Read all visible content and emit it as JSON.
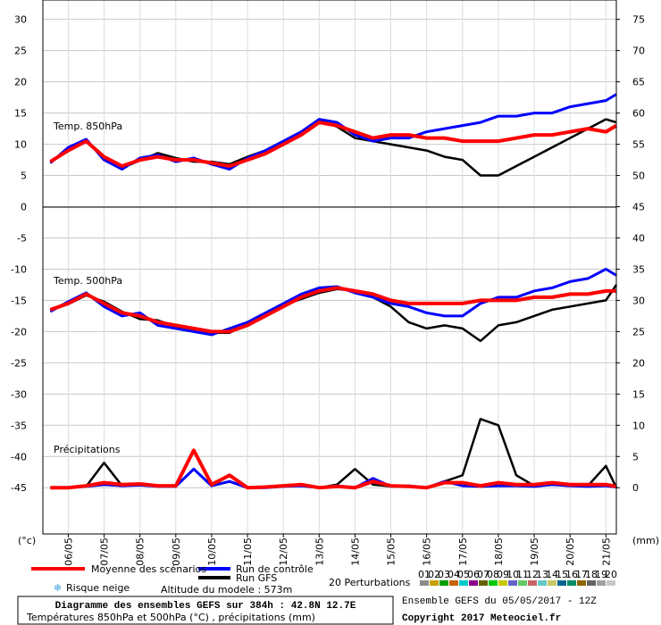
{
  "chart_data": {
    "type": "line",
    "title": "Diagramme des ensembles GEFS sur 384h : 42.8N 12.7E",
    "subtitle": "Températures 850hPa et 500hPa (°C) , précipitations (mm)",
    "run_info": "Ensemble GEFS du 05/05/2017 - 12Z",
    "copyright": "Copyright 2017 Meteociel.fr",
    "altitude": "Altitude du modele : 573m",
    "snow_label": "Risque neige",
    "y_unit": "(°c)",
    "y2_unit": "(mm)",
    "grid": true,
    "x": [
      0,
      12,
      24,
      36,
      48,
      60,
      72,
      84,
      96,
      108,
      120,
      132,
      144,
      156,
      168,
      180,
      192,
      204,
      216,
      228,
      240,
      252,
      264,
      276,
      288,
      300,
      312,
      324,
      336,
      348,
      360,
      372,
      379
    ],
    "xlim": [
      -5,
      379
    ],
    "xticks": [
      {
        "value": 12,
        "label": "06/05"
      },
      {
        "value": 36,
        "label": "07/05"
      },
      {
        "value": 60,
        "label": "08/05"
      },
      {
        "value": 84,
        "label": "09/05"
      },
      {
        "value": 108,
        "label": "10/05"
      },
      {
        "value": 132,
        "label": "11/05"
      },
      {
        "value": 156,
        "label": "12/05"
      },
      {
        "value": 180,
        "label": "13/05"
      },
      {
        "value": 204,
        "label": "14/05"
      },
      {
        "value": 228,
        "label": "15/05"
      },
      {
        "value": 252,
        "label": "16/05"
      },
      {
        "value": 276,
        "label": "17/05"
      },
      {
        "value": 300,
        "label": "18/05"
      },
      {
        "value": 324,
        "label": "19/05"
      },
      {
        "value": 348,
        "label": "20/05"
      },
      {
        "value": 372,
        "label": "21/05"
      }
    ],
    "ylim": [
      -52.4,
      33.1
    ],
    "yticks": [
      -45,
      -40,
      -35,
      -30,
      -25,
      -20,
      -15,
      -10,
      -5,
      0,
      5,
      10,
      15,
      20,
      25,
      30
    ],
    "y2lim": [
      -7.4,
      78.1
    ],
    "y2ticks": [
      0,
      5,
      10,
      15,
      20,
      25,
      30,
      35,
      40,
      45,
      50,
      55,
      60,
      65,
      70,
      75
    ],
    "legend": {
      "mean": {
        "name": "Moyenne des scénarios",
        "color": "#ff0000"
      },
      "control": {
        "name": "Run de contrôle",
        "color": "#0000ff"
      },
      "gfs": {
        "name": "Run GFS",
        "color": "#000000"
      }
    },
    "perturbations": {
      "label": "20 Perturbations",
      "members": [
        {
          "name": "01",
          "color": "#8c8c8c"
        },
        {
          "name": "02",
          "color": "#c8a000"
        },
        {
          "name": "03",
          "color": "#00a000"
        },
        {
          "name": "04",
          "color": "#c86400"
        },
        {
          "name": "05",
          "color": "#00c8c8"
        },
        {
          "name": "06",
          "color": "#8c008c"
        },
        {
          "name": "07",
          "color": "#646400"
        },
        {
          "name": "08",
          "color": "#00c800"
        },
        {
          "name": "09",
          "color": "#c8c800"
        },
        {
          "name": "10",
          "color": "#6464c8"
        },
        {
          "name": "11",
          "color": "#64c864"
        },
        {
          "name": "12",
          "color": "#c86464"
        },
        {
          "name": "13",
          "color": "#64c8c8"
        },
        {
          "name": "14",
          "color": "#c8c864"
        },
        {
          "name": "15",
          "color": "#00648c"
        },
        {
          "name": "16",
          "color": "#008c64"
        },
        {
          "name": "17",
          "color": "#8c6400"
        },
        {
          "name": "18",
          "color": "#646464"
        },
        {
          "name": "19",
          "color": "#a0a0a0"
        },
        {
          "name": "20",
          "color": "#c8c8c8"
        }
      ]
    },
    "panels": [
      {
        "label": "Temp. 850hPa",
        "axis": "y",
        "mean": [
          7.2,
          9,
          10.5,
          8,
          6.5,
          7.5,
          8,
          7.5,
          7.5,
          7,
          6.5,
          7.5,
          8.5,
          10,
          11.5,
          13.5,
          13,
          12,
          11,
          11.5,
          11.5,
          11,
          11,
          10.5,
          10.5,
          10.5,
          11,
          11.5,
          11.5,
          12,
          12.5,
          12,
          13
        ],
        "control": [
          7,
          9.5,
          10.8,
          7.5,
          6,
          7.8,
          8.3,
          7.2,
          7.8,
          6.8,
          6,
          7.8,
          9,
          10.5,
          12,
          14,
          13.5,
          11.5,
          10.5,
          11,
          11,
          12,
          12.5,
          13,
          13.5,
          14.5,
          14.5,
          15,
          15,
          16,
          16.5,
          17,
          18
        ],
        "gfs": [
          7,
          9.2,
          10.6,
          7.8,
          6.2,
          7.4,
          8.6,
          7.8,
          7.2,
          7.2,
          6.8,
          8,
          9,
          10.2,
          11.8,
          13.8,
          12.8,
          11,
          10.5,
          10,
          9.5,
          9,
          8,
          7.5,
          5,
          5,
          6.5,
          8,
          9.5,
          11,
          12.5,
          14,
          13.5
        ]
      },
      {
        "label": "Temp. 500hPa",
        "axis": "y",
        "mean": [
          -16.5,
          -15.5,
          -14,
          -15.5,
          -17,
          -17.5,
          -18.5,
          -19,
          -19.5,
          -20,
          -20,
          -19,
          -17.5,
          -16,
          -14.5,
          -13.5,
          -13,
          -13.5,
          -14,
          -15,
          -15.5,
          -15.5,
          -15.5,
          -15.5,
          -15,
          -15,
          -15,
          -14.5,
          -14.5,
          -14,
          -14,
          -13.5,
          -13.5
        ],
        "control": [
          -16.8,
          -15.2,
          -13.8,
          -16,
          -17.5,
          -17,
          -19,
          -19.5,
          -20,
          -20.5,
          -19.5,
          -18.5,
          -17,
          -15.5,
          -14,
          -13,
          -12.8,
          -13.8,
          -14.5,
          -15.5,
          -16,
          -17,
          -17.5,
          -17.5,
          -15.5,
          -14.5,
          -14.5,
          -13.5,
          -13,
          -12,
          -11.5,
          -10,
          -11
        ],
        "gfs": [
          -16.6,
          -15.6,
          -14.2,
          -15.2,
          -16.8,
          -18,
          -18.2,
          -19.2,
          -19.8,
          -20.2,
          -20.2,
          -18.8,
          -17,
          -15.8,
          -14.8,
          -13.8,
          -13.2,
          -13.5,
          -14.5,
          -16,
          -18.5,
          -19.5,
          -19,
          -19.5,
          -21.5,
          -19,
          -18.5,
          -17.5,
          -16.5,
          -16,
          -15.5,
          -15,
          -12.5
        ]
      },
      {
        "label": "Précipitations",
        "axis": "y2",
        "mean": [
          0,
          0,
          0.3,
          0.8,
          0.5,
          0.6,
          0.3,
          0.3,
          6,
          0.5,
          2,
          0,
          0.1,
          0.3,
          0.5,
          0,
          0.2,
          0,
          1,
          0.3,
          0.2,
          0,
          0.8,
          0.8,
          0.3,
          0.8,
          0.5,
          0.5,
          0.8,
          0.5,
          0.5,
          0.5,
          0.2
        ],
        "control": [
          0,
          0,
          0.2,
          0.5,
          0.3,
          0.4,
          0.2,
          0.2,
          3,
          0.3,
          1,
          0,
          0,
          0.2,
          0.3,
          0,
          0.3,
          0,
          1.5,
          0.2,
          0.3,
          0,
          1,
          0.3,
          0.2,
          0.3,
          0.3,
          0.2,
          0.5,
          0.3,
          0.2,
          0.3,
          0.1
        ],
        "gfs": [
          0,
          0,
          0.2,
          4,
          0.3,
          0.5,
          0.2,
          0.2,
          3,
          0.3,
          1,
          0,
          0,
          0.3,
          0.5,
          0,
          0.5,
          3,
          0.5,
          0.2,
          0.2,
          0,
          1,
          2,
          11,
          10,
          2,
          0.3,
          0.5,
          0.3,
          0.3,
          3.5,
          0
        ]
      }
    ]
  }
}
